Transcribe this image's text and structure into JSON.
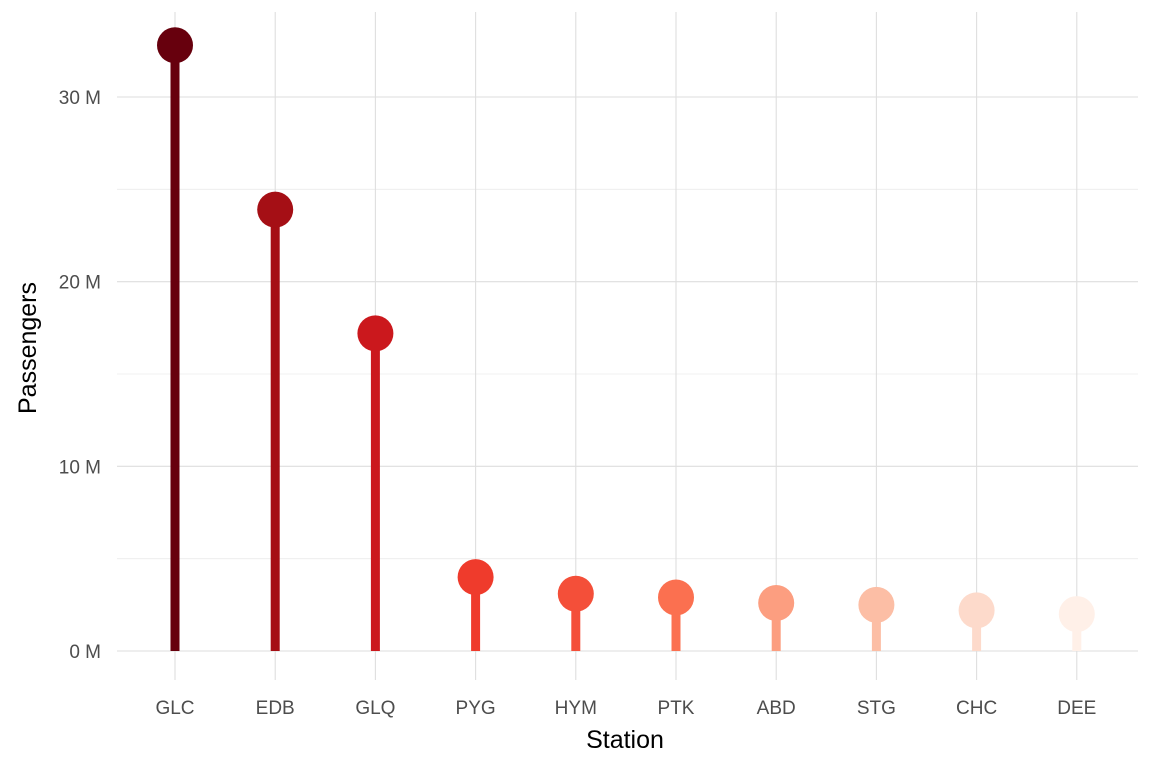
{
  "chart_data": {
    "type": "lollipop",
    "xlabel": "Station",
    "ylabel": "Passengers",
    "categories": [
      "GLC",
      "EDB",
      "GLQ",
      "PYG",
      "HYM",
      "PTK",
      "ABD",
      "STG",
      "CHC",
      "DEE"
    ],
    "values": [
      32800000,
      23900000,
      17200000,
      4000000,
      3100000,
      2900000,
      2600000,
      2500000,
      2200000,
      2000000
    ],
    "colors": [
      "#67000d",
      "#a50f15",
      "#cb181d",
      "#ef3b2c",
      "#f44f39",
      "#fb7050",
      "#fc9e80",
      "#fcbea5",
      "#fddacb",
      "#fff0e8"
    ],
    "y_ticks": [
      0,
      10000000,
      20000000,
      30000000
    ],
    "y_tick_labels": [
      "0 M",
      "10 M",
      "20 M",
      "30 M"
    ],
    "ylim": [
      -3000000,
      34500000
    ],
    "grid": true,
    "legend": "none"
  }
}
